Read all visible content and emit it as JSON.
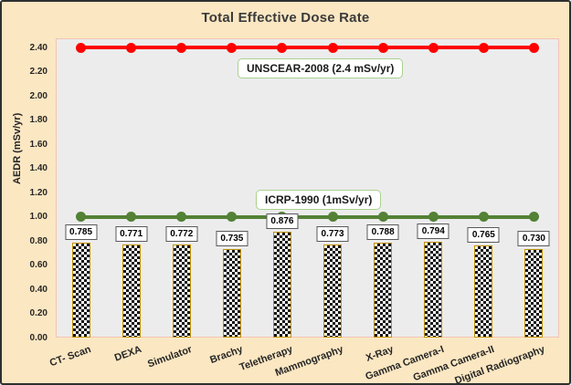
{
  "figure": {
    "title": "Total Effective Dose Rate",
    "y_axis_title": "AEDR (mSv/yr)",
    "background_color": "#FBE7C2",
    "plot_background_color": "#ECECEC",
    "plot_border_color": "#F2C4B5"
  },
  "chart_data": {
    "type": "bar",
    "title": "Total Effective Dose Rate",
    "xlabel": "",
    "ylabel": "AEDR (mSv/yr)",
    "ylim": [
      0,
      2.475
    ],
    "ytick_step": 0.2,
    "yticks": [
      "0.00",
      "0.20",
      "0.40",
      "0.60",
      "0.80",
      "1.00",
      "1.20",
      "1.40",
      "1.60",
      "1.80",
      "2.00",
      "2.20",
      "2.40"
    ],
    "grid": false,
    "legend": "none",
    "categories": [
      "CT- Scan",
      "DEXA",
      "Simulator",
      "Brachy",
      "Teletherapy",
      "Mammography",
      "X-Ray",
      "Gamma Camera-I",
      "Gamma Camera-II",
      "Digital Radiography"
    ],
    "values": [
      0.785,
      0.771,
      0.772,
      0.735,
      0.876,
      0.773,
      0.788,
      0.794,
      0.765,
      0.73
    ],
    "value_labels": [
      "0.785",
      "0.771",
      "0.772",
      "0.735",
      "0.876",
      "0.773",
      "0.788",
      "0.794",
      "0.765",
      "0.730"
    ],
    "reference_lines": [
      {
        "name": "UNSCEAR-2008",
        "label": "UNSCEAR-2008 (2.4 mSv/yr)",
        "value": 2.4,
        "color": "#FF0000"
      },
      {
        "name": "ICRP-1990",
        "label": "ICRP-1990 (1mSv/yr)",
        "value": 1.0,
        "color": "#538135"
      }
    ],
    "bar_style": {
      "pattern": "checkerboard",
      "pattern_color": "#141414",
      "pattern_alt_color": "#FFFFFF",
      "border_color": "#BF9000"
    },
    "annotation_border_color": "#A9D18E"
  }
}
